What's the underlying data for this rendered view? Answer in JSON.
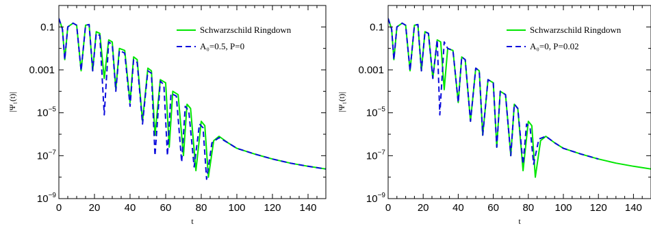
{
  "chart_data": [
    {
      "type": "line",
      "xlabel": "t",
      "ylabel": "|Ψ₁(t)|",
      "xlim": [
        0,
        150
      ],
      "ylim": [
        1e-09,
        1
      ],
      "yscale": "log",
      "xticks": [
        "0",
        "20",
        "40",
        "60",
        "80",
        "100",
        "120",
        "140"
      ],
      "yticks": [
        {
          "base": "0.1",
          "exp": ""
        },
        {
          "base": "0.001",
          "exp": ""
        },
        {
          "base": "10",
          "exp": "−5"
        },
        {
          "base": "10",
          "exp": "−7"
        },
        {
          "base": "10",
          "exp": "−9"
        }
      ],
      "legend_position": "top-right",
      "series": [
        {
          "name": "Schwarzschild Ringdown",
          "color": "#00e600",
          "style": "solid",
          "x": [
            0,
            2,
            3.3,
            5,
            8,
            10,
            12.5,
            15,
            17,
            19,
            21,
            23,
            25.5,
            28,
            30,
            32,
            34,
            37,
            40,
            42,
            44,
            47,
            50,
            52,
            54,
            57,
            60,
            62,
            64,
            67,
            70,
            72,
            74,
            77,
            80,
            82,
            84,
            87,
            90,
            95,
            100,
            110,
            120,
            130,
            140,
            150
          ],
          "y": [
            0.25,
            0.08,
            0.003,
            0.1,
            0.15,
            0.12,
            0.0009,
            0.12,
            0.13,
            0.0009,
            0.06,
            0.05,
            0.0004,
            0.025,
            0.02,
            0.00012,
            0.01,
            0.008,
            3e-05,
            0.004,
            0.003,
            4e-06,
            0.0012,
            0.0009,
            9e-07,
            0.00035,
            0.00025,
            2.5e-07,
            0.0001,
            7e-05,
            1e-07,
            2.5e-05,
            1.6e-05,
            2e-08,
            4e-06,
            2.5e-06,
            1e-08,
            5e-07,
            8e-07,
            4e-07,
            2.2e-07,
            1.2e-07,
            7e-08,
            4.5e-08,
            3.2e-08,
            2.4e-08
          ]
        },
        {
          "name": "A₀=0.5, P=0",
          "color": "#0a0adc",
          "style": "dashed",
          "x": [
            0,
            2,
            3.3,
            5,
            8,
            10,
            12.5,
            15,
            17,
            19,
            21,
            23,
            25.5,
            28,
            30,
            32,
            34,
            37,
            40,
            42,
            44,
            47,
            50,
            52,
            54,
            57,
            59,
            61,
            63,
            66,
            69,
            71,
            73,
            76,
            79,
            81,
            83,
            86,
            90,
            95,
            100,
            110,
            120,
            130,
            140,
            150
          ],
          "y": [
            0.25,
            0.08,
            0.003,
            0.1,
            0.15,
            0.12,
            0.0009,
            0.12,
            0.13,
            0.0009,
            0.05,
            0.04,
            8e-06,
            0.02,
            0.015,
            0.0001,
            0.008,
            0.006,
            2e-05,
            0.003,
            0.0022,
            3e-06,
            0.0009,
            0.0007,
            1e-07,
            0.0003,
            0.0002,
            1e-07,
            8e-05,
            6e-05,
            5e-08,
            2e-05,
            1.2e-05,
            3e-08,
            3e-06,
            2e-06,
            8e-09,
            4e-07,
            7e-07,
            4e-07,
            2.2e-07,
            1.2e-07,
            7e-08,
            4.5e-08,
            3.2e-08,
            2.4e-08
          ]
        }
      ]
    },
    {
      "type": "line",
      "xlabel": "t",
      "ylabel": "|Ψ₁(t)|",
      "xlim": [
        0,
        150
      ],
      "ylim": [
        1e-09,
        1
      ],
      "yscale": "log",
      "xticks": [
        "0",
        "20",
        "40",
        "60",
        "80",
        "100",
        "120",
        "140"
      ],
      "yticks": [
        {
          "base": "0.1",
          "exp": ""
        },
        {
          "base": "0.001",
          "exp": ""
        },
        {
          "base": "10",
          "exp": "−5"
        },
        {
          "base": "10",
          "exp": "−7"
        },
        {
          "base": "10",
          "exp": "−9"
        }
      ],
      "legend_position": "top-right",
      "series": [
        {
          "name": "Schwarzschild Ringdown",
          "color": "#00e600",
          "style": "solid",
          "x": [
            0,
            2,
            3.3,
            5,
            8,
            10,
            12.5,
            15,
            17,
            19,
            21,
            23,
            25.5,
            28,
            30,
            32,
            34,
            37,
            40,
            42,
            44,
            47,
            50,
            52,
            54,
            57,
            60,
            62,
            64,
            67,
            70,
            72,
            74,
            77,
            80,
            82,
            84,
            87,
            90,
            95,
            100,
            110,
            120,
            130,
            140,
            150
          ],
          "y": [
            0.25,
            0.08,
            0.003,
            0.1,
            0.15,
            0.12,
            0.0009,
            0.12,
            0.13,
            0.0009,
            0.06,
            0.05,
            0.0004,
            0.025,
            0.02,
            0.00012,
            0.01,
            0.008,
            3e-05,
            0.004,
            0.003,
            4e-06,
            0.0012,
            0.0009,
            9e-07,
            0.00035,
            0.00025,
            2.5e-07,
            0.0001,
            7e-05,
            1e-07,
            2.5e-05,
            1.6e-05,
            2e-08,
            4e-06,
            2.5e-06,
            1e-08,
            5e-07,
            8e-07,
            4e-07,
            2.2e-07,
            1.2e-07,
            7e-08,
            4.5e-08,
            3.2e-08,
            2.4e-08
          ]
        },
        {
          "name": "A₀=0, P=0.02",
          "color": "#0a0adc",
          "style": "dashed",
          "x": [
            0,
            2,
            3.3,
            5,
            8,
            10,
            12.5,
            15,
            17,
            19,
            21,
            23,
            25.5,
            28,
            29.5,
            32,
            34,
            37,
            40,
            42,
            44,
            47,
            50,
            52,
            54,
            57,
            60,
            62,
            64,
            67,
            70,
            72,
            74,
            77,
            79,
            81,
            83,
            86,
            90,
            95,
            100,
            110,
            120
          ],
          "y": [
            0.25,
            0.08,
            0.003,
            0.1,
            0.15,
            0.12,
            0.0009,
            0.12,
            0.13,
            0.0009,
            0.06,
            0.05,
            0.0004,
            0.025,
            8e-06,
            0.02,
            0.01,
            0.008,
            3e-05,
            0.004,
            0.003,
            4e-06,
            0.0012,
            0.0009,
            9e-07,
            0.00035,
            0.00025,
            2.5e-07,
            0.0001,
            7e-05,
            1e-07,
            2.5e-05,
            1.6e-05,
            4e-08,
            3e-06,
            2e-06,
            4e-08,
            6e-07,
            8e-07,
            4e-07,
            2.2e-07,
            1.2e-07,
            7e-08
          ]
        }
      ]
    }
  ]
}
